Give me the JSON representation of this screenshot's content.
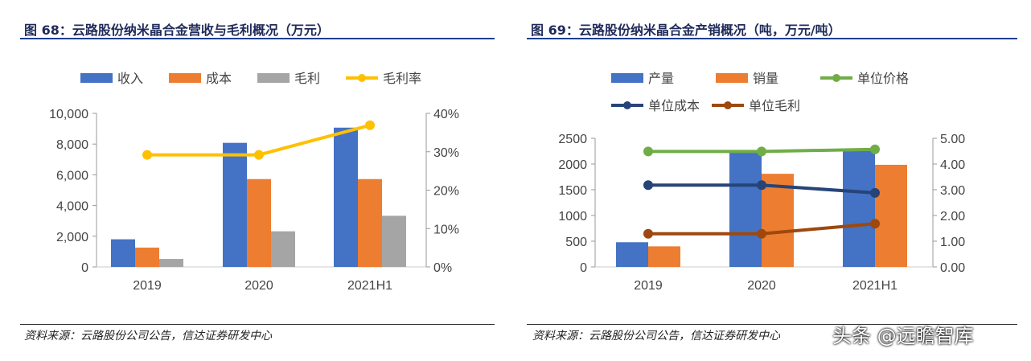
{
  "chart_data": [
    {
      "type": "bar+line",
      "title": "图 68：云路股份纳米晶合金营收与毛利概况（万元）",
      "categories": [
        "2019",
        "2020",
        "2021H1"
      ],
      "series": [
        {
          "name": "收入",
          "type": "bar",
          "axis": "left",
          "color": "#4472c4",
          "values": [
            1800,
            8080,
            9070
          ]
        },
        {
          "name": "成本",
          "type": "bar",
          "axis": "left",
          "color": "#ed7d31",
          "values": [
            1260,
            5720,
            5720
          ]
        },
        {
          "name": "毛利",
          "type": "bar",
          "axis": "left",
          "color": "#a5a5a5",
          "values": [
            520,
            2320,
            3330
          ]
        },
        {
          "name": "毛利率",
          "type": "line",
          "axis": "right",
          "color": "#ffc000",
          "values": [
            29.2,
            29.2,
            36.9
          ]
        }
      ],
      "ylim": [
        0,
        10000
      ],
      "y_ticks": [
        "0",
        "2,000",
        "4,000",
        "6,000",
        "8,000",
        "10,000"
      ],
      "y2lim": [
        0,
        40
      ],
      "y2_ticks": [
        "0%",
        "10%",
        "20%",
        "30%",
        "40%"
      ],
      "legend": "top",
      "grid": false,
      "source": "资料来源：云路股份公司公告，信达证券研发中心"
    },
    {
      "type": "bar+line",
      "title": "图 69：云路股份纳米晶合金产销概况（吨，万元/吨）",
      "categories": [
        "2019",
        "2020",
        "2021H1"
      ],
      "series": [
        {
          "name": "产量",
          "type": "bar",
          "axis": "left",
          "color": "#4472c4",
          "values": [
            480,
            2230,
            2290
          ]
        },
        {
          "name": "销量",
          "type": "bar",
          "axis": "left",
          "color": "#ed7d31",
          "values": [
            400,
            1810,
            1985
          ]
        },
        {
          "name": "单位价格",
          "type": "line",
          "axis": "right",
          "color": "#70ad47",
          "values": [
            4.49,
            4.49,
            4.57
          ]
        },
        {
          "name": "单位成本",
          "type": "line",
          "axis": "right",
          "color": "#264478",
          "values": [
            3.18,
            3.18,
            2.88
          ]
        },
        {
          "name": "单位毛利",
          "type": "line",
          "axis": "right",
          "color": "#9e480e",
          "values": [
            1.29,
            1.29,
            1.68
          ]
        }
      ],
      "ylim": [
        0,
        2500
      ],
      "y_ticks": [
        "0",
        "500",
        "1000",
        "1500",
        "2000",
        "2500"
      ],
      "y2lim": [
        0,
        5
      ],
      "y2_ticks": [
        "0.00",
        "1.00",
        "2.00",
        "3.00",
        "4.00",
        "5.00"
      ],
      "legend": "top",
      "grid": false,
      "source": "资料来源：云路股份公司公告，信达证券研发中心"
    }
  ],
  "watermark": "头条 @远瞻智库"
}
